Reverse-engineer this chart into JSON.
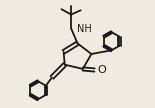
{
  "bg_color": "#f0ebe0",
  "bond_color": "#1a1a1a",
  "bond_lw": 1.3,
  "font_size": 7.0,
  "font_color": "#1a1a1a"
}
